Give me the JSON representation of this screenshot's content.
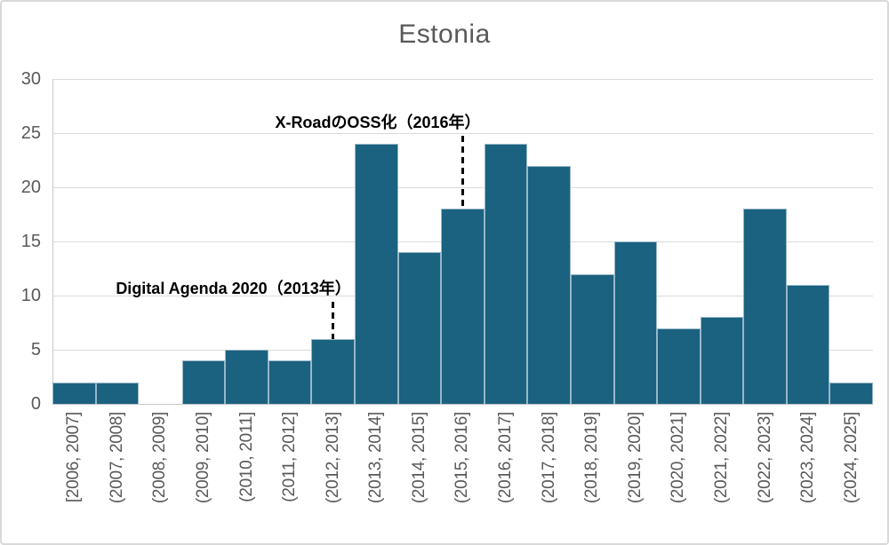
{
  "chart_data": {
    "type": "bar",
    "title": "Estonia",
    "categories": [
      "[2006, 2007]",
      "(2007, 2008]",
      "(2008, 2009]",
      "(2009, 2010]",
      "(2010, 2011]",
      "(2011, 2012]",
      "(2012, 2013]",
      "(2013, 2014]",
      "(2014, 2015]",
      "(2015, 2016]",
      "(2016, 2017]",
      "(2017, 2018]",
      "(2018, 2019]",
      "(2019, 2020]",
      "(2020, 2021]",
      "(2021, 2022]",
      "(2022, 2023]",
      "(2023, 2024]",
      "(2024, 2025]"
    ],
    "values": [
      2,
      2,
      0,
      4,
      5,
      4,
      6,
      24,
      14,
      18,
      24,
      22,
      12,
      15,
      7,
      8,
      18,
      11,
      2
    ],
    "xlabel": "",
    "ylabel": "",
    "ylim": [
      0,
      30
    ],
    "yticks": [
      0,
      5,
      10,
      15,
      20,
      25,
      30
    ],
    "grid": true,
    "legend": "none",
    "bar_color": "#1B6180",
    "annotations": [
      {
        "label": "X-RoadのOSS化（2016年）",
        "target_bin": "(2015, 2016]",
        "target_bin_index": 9
      },
      {
        "label": "Digital Agenda 2020（2013年）",
        "target_bin": "(2012, 2013]",
        "target_bin_index": 6
      }
    ]
  },
  "colors": {
    "bar": "#1B6180",
    "gridline": "#DBDBDB",
    "axis_line": "#C6C6C6",
    "tick_label": "#595959",
    "title": "#595959",
    "annotation_text": "#000000",
    "frame_border": "#D9D9D9",
    "background": "#FFFFFF"
  }
}
